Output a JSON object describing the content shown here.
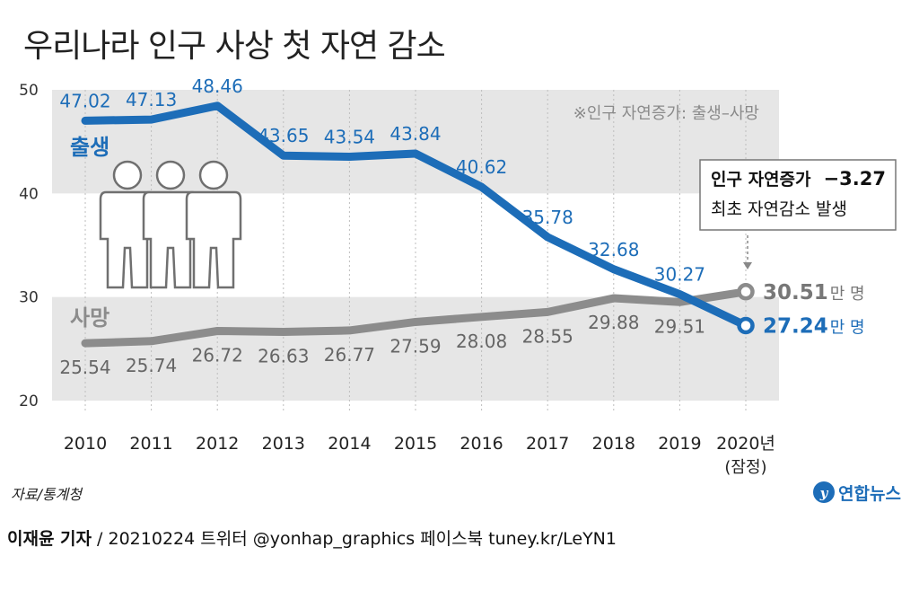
{
  "title": "우리나라 인구 사상 첫 자연 감소",
  "note": "※인구 자연증가: 출생–사망",
  "callout": {
    "line1_label": "인구 자연증가",
    "line1_value": "−3.27",
    "line2": "최초 자연감소 발생"
  },
  "source": "자료/통계청",
  "logo_text": "연합뉴스",
  "footer": {
    "reporter": "이재윤 기자",
    "rest": " / 20210224   트위터 @yonhap_graphics  페이스북 tuney.kr/LeYN1"
  },
  "colors": {
    "births": "#1d6db8",
    "deaths": "#8c8c8c",
    "band": "#e6e6e6",
    "grid": "#bdbdbd"
  },
  "chart_data": {
    "type": "line",
    "x": [
      "2010",
      "2011",
      "2012",
      "2013",
      "2014",
      "2015",
      "2016",
      "2017",
      "2018",
      "2019",
      "2020년"
    ],
    "x_sublabel_last": "(잠정)",
    "ylim": [
      20,
      50
    ],
    "yticks": [
      "20",
      "30",
      "40",
      "50"
    ],
    "series": [
      {
        "name": "출생",
        "values": [
          47.02,
          47.13,
          48.46,
          43.65,
          43.54,
          43.84,
          40.62,
          35.78,
          32.68,
          30.27,
          27.24
        ],
        "labels": [
          "47.02",
          "47.13",
          "48.46",
          "43.65",
          "43.54",
          "43.84",
          "40.62",
          "35.78",
          "32.68",
          "30.27",
          "27.24"
        ],
        "end_unit": "만 명"
      },
      {
        "name": "사망",
        "values": [
          25.54,
          25.74,
          26.72,
          26.63,
          26.77,
          27.59,
          28.08,
          28.55,
          29.88,
          29.51,
          30.51
        ],
        "labels": [
          "25.54",
          "25.74",
          "26.72",
          "26.63",
          "26.77",
          "27.59",
          "28.08",
          "28.55",
          "29.88",
          "29.51",
          "30.51"
        ],
        "end_unit": "만 명"
      }
    ]
  }
}
